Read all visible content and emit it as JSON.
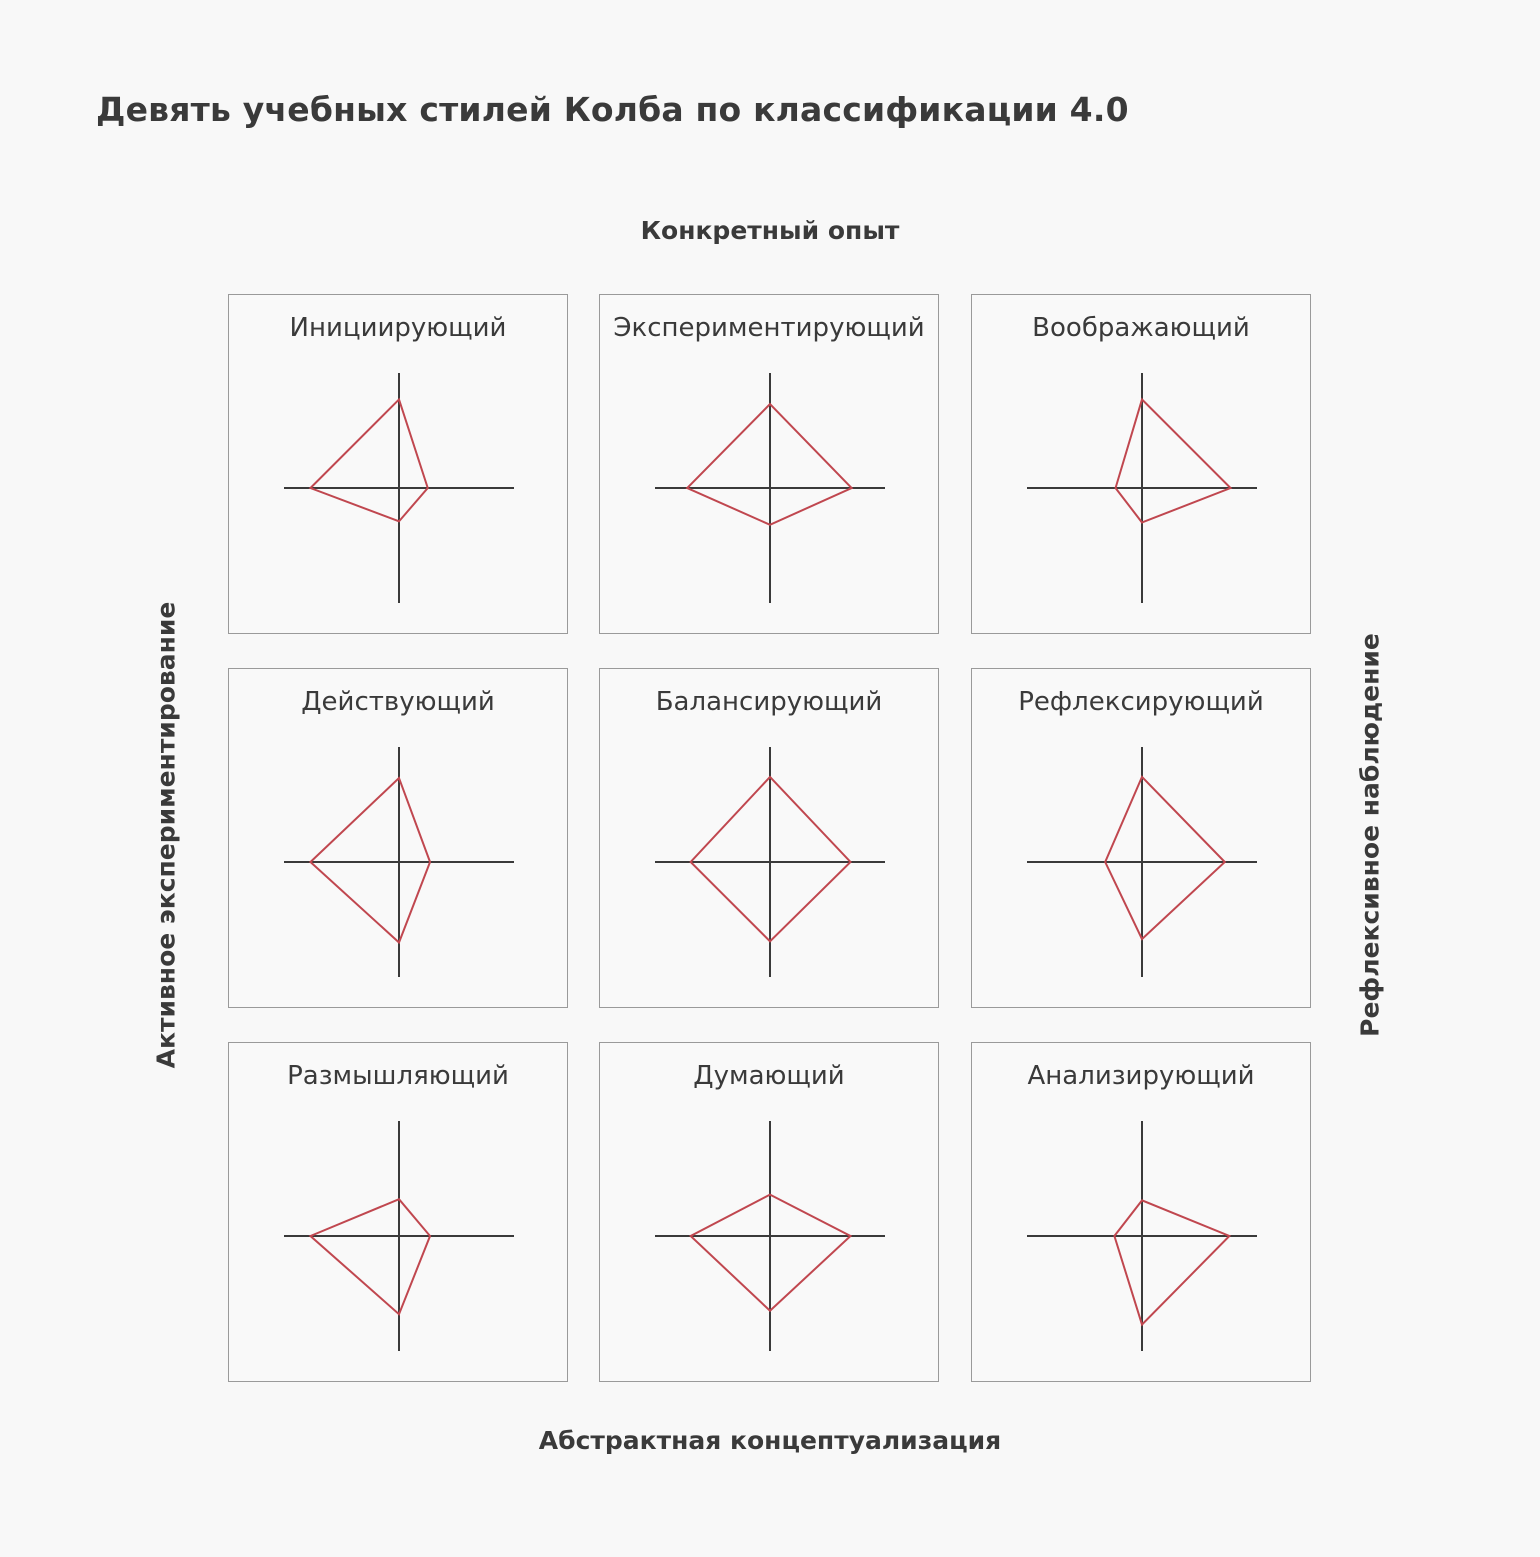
{
  "title": "Девять учебных стилей Колба по классификации 4.0",
  "axes": {
    "top": "Конкретный опыт",
    "bottom": "Абстрактная концептуализация",
    "left": "Активное экспериментирование",
    "right": "Рефлексивное наблюдение"
  },
  "colors": {
    "shape": "#c0474f",
    "axis": "#3a3a3a",
    "border": "#9a9a9a",
    "background": "#f8f8f8"
  },
  "chart_data": {
    "type": "radar-grid",
    "value_order": [
      "top",
      "right",
      "bottom",
      "left"
    ],
    "panels": [
      {
        "name": "Инициирующий",
        "values": [
          0.77,
          0.25,
          0.29,
          0.77
        ]
      },
      {
        "name": "Экспериментирующий",
        "values": [
          0.73,
          0.71,
          0.32,
          0.72
        ]
      },
      {
        "name": "Воображающий",
        "values": [
          0.77,
          0.77,
          0.3,
          0.23
        ]
      },
      {
        "name": "Действующий",
        "values": [
          0.73,
          0.27,
          0.7,
          0.77
        ]
      },
      {
        "name": "Балансирующий",
        "values": [
          0.74,
          0.7,
          0.69,
          0.69
        ]
      },
      {
        "name": "Рефлексирующий",
        "values": [
          0.74,
          0.72,
          0.67,
          0.32
        ]
      },
      {
        "name": "Размышляющий",
        "values": [
          0.32,
          0.27,
          0.68,
          0.77
        ]
      },
      {
        "name": "Думающий",
        "values": [
          0.36,
          0.7,
          0.65,
          0.69
        ]
      },
      {
        "name": "Анализирующий",
        "values": [
          0.31,
          0.76,
          0.77,
          0.24
        ]
      }
    ]
  }
}
